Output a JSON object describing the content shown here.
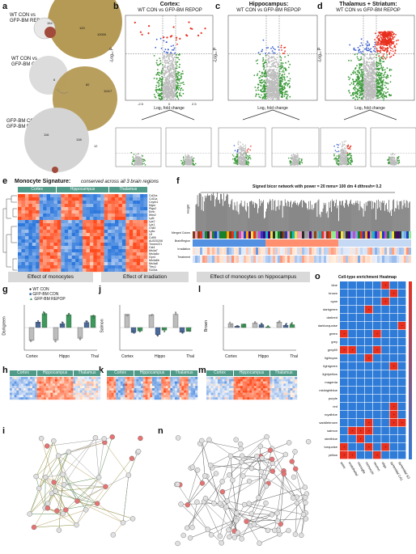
{
  "panels": {
    "a": {
      "letter": "a",
      "rows": [
        {
          "label": "WT CON vs\nGFP-BM REPOP",
          "n1": "154",
          "n2": "120",
          "n3": "10000"
        },
        {
          "label": "WT CON vs\nGFP-BM CON",
          "n1": "6",
          "n2": "82",
          "n3": "11117"
        },
        {
          "label": "GFP-BM CON vs\nGFP-BM REPOP",
          "n1": "116",
          "n2": "138",
          "n3": "12"
        }
      ]
    },
    "b": {
      "letter": "b",
      "title": "Cortex:",
      "subtitle": "WT CON vs GFP-BM REPOP",
      "xlabel": "Log₂ fold change",
      "ylabel": "-Log₁₀ P",
      "xticks": [
        "-2.5",
        "0",
        "2.5"
      ]
    },
    "c": {
      "letter": "c",
      "title": "Hippocampus:",
      "subtitle": "WT CON vs GFP-BM REPOP",
      "xlabel": "Log₂ fold change",
      "ylabel": "-Log₁₀ P",
      "xticks": [
        "-4",
        "-2",
        "0",
        "2",
        "4"
      ]
    },
    "d": {
      "letter": "d",
      "title": "Thalamus + Striatum:",
      "subtitle": "WT CON vs GFP-BM REPOP",
      "xlabel": "Log₂ fold change",
      "ylabel": "-Log₁₀ P",
      "xticks": [
        "-2.5",
        "0",
        "2.5",
        "5.0"
      ]
    },
    "sub_labels": {
      "irr": "Irradiation",
      "mono": "Monocytes"
    },
    "e": {
      "letter": "e",
      "title": "Monocyte Signature:",
      "subtitle": "conserved across all 3 brain regions",
      "regions": [
        "Cortex",
        "Hippocampus",
        "Thalamus"
      ],
      "genes": [
        "Ccl2ra",
        "Cd11a",
        "Cxyrb1",
        "Mgst",
        "Ptgs2",
        "Emb",
        "Ifitm2",
        "Ly6i",
        "Lyz2",
        "Lyz1",
        "Chil3",
        "Ly6c",
        "Ltf",
        "Cd99",
        "AU020206",
        "Tmem221",
        "Cst4",
        "Ms4a7",
        "Ms4a6c",
        "Gpr4",
        "Ms4a6b",
        "Ms4a8",
        "Tfec1",
        "S100a"
      ]
    },
    "f": {
      "letter": "f",
      "title": "Signed bicor network with power = 20 mms= 100 dm 4 dthresh= 0.2",
      "ylabel": "Height",
      "rows": [
        "Merged Colors",
        "BrainRegion",
        "Irradiation",
        "Treatment"
      ]
    },
    "g": {
      "letter": "g",
      "header": "Effect of monocytes",
      "ylabel": "Darkgreen",
      "xticks": [
        "Cortex",
        "Hippo",
        "Thal"
      ],
      "legend": [
        "WT CON",
        "GFP-BM CON",
        "GFP-BM REPOP"
      ]
    },
    "j": {
      "letter": "j",
      "header": "Effect of irradiation",
      "ylabel": "Salmon",
      "xticks": [
        "Cortex",
        "Hippo",
        "Thal"
      ]
    },
    "l": {
      "letter": "l",
      "header": "Effect of monocytes on hippocampus",
      "ylabel": "Brown",
      "xticks": [
        "Cortex",
        "Hippo",
        "Thal"
      ]
    },
    "h": {
      "letter": "h",
      "regions": [
        "Cortex",
        "Hippocampus",
        "Thalamus"
      ]
    },
    "k": {
      "letter": "k",
      "regions": [
        "Cortex",
        "Hippocampus",
        "Thalamus"
      ]
    },
    "m": {
      "letter": "m",
      "regions": [
        "Cortex",
        "Hippocampus",
        "Thalamus"
      ]
    },
    "o": {
      "letter": "o",
      "title": "Cell-type enrichment Heatmap",
      "rows": [
        "blue",
        "brown",
        "cyan",
        "darkgreen",
        "darkred",
        "darkturquoise",
        "green",
        "grey",
        "grey60",
        "lightcyan",
        "lightgreen",
        "lightyellow",
        "magenta",
        "midnightblue",
        "purple",
        "red",
        "royalblue",
        "saddlebrown",
        "salmon",
        "steelblue",
        "turquoise",
        "yellow"
      ],
      "cols": [
        "astro",
        "endothelial",
        "microglia",
        "monocyte",
        "neuron",
        "oligo",
        "pyramidal CA1",
        "pyramidal SS"
      ]
    },
    "i": {
      "letter": "i"
    },
    "n": {
      "letter": "n"
    }
  },
  "colors": {
    "red": "#e8301f",
    "blue": "#3b5fcf",
    "green": "#3c9a3a",
    "gray": "#bdbdbd",
    "olive": "#b59a55",
    "teal": "#4f9a88"
  }
}
